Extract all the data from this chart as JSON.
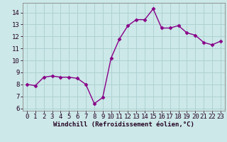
{
  "x": [
    0,
    1,
    2,
    3,
    4,
    5,
    6,
    7,
    8,
    9,
    10,
    11,
    12,
    13,
    14,
    15,
    16,
    17,
    18,
    19,
    20,
    21,
    22,
    23
  ],
  "y": [
    8.0,
    7.9,
    8.6,
    8.7,
    8.6,
    8.6,
    8.5,
    8.0,
    6.4,
    6.9,
    10.2,
    11.8,
    12.9,
    13.4,
    13.4,
    14.3,
    12.7,
    12.7,
    12.9,
    12.3,
    12.1,
    11.5,
    11.3,
    11.6
  ],
  "line_color": "#880088",
  "marker": "D",
  "marker_size": 2.5,
  "bg_color": "#cce8e8",
  "grid_color": "#aacece",
  "xlabel": "Windchill (Refroidissement éolien,°C)",
  "xlim": [
    -0.5,
    23.5
  ],
  "ylim": [
    5.8,
    14.8
  ],
  "yticks": [
    6,
    7,
    8,
    9,
    10,
    11,
    12,
    13,
    14
  ],
  "xticks": [
    0,
    1,
    2,
    3,
    4,
    5,
    6,
    7,
    8,
    9,
    10,
    11,
    12,
    13,
    14,
    15,
    16,
    17,
    18,
    19,
    20,
    21,
    22,
    23
  ],
  "xlabel_fontsize": 6.5,
  "tick_fontsize": 6.5,
  "tick_color": "#220022",
  "xlabel_color": "#220022",
  "line_width": 1.0
}
